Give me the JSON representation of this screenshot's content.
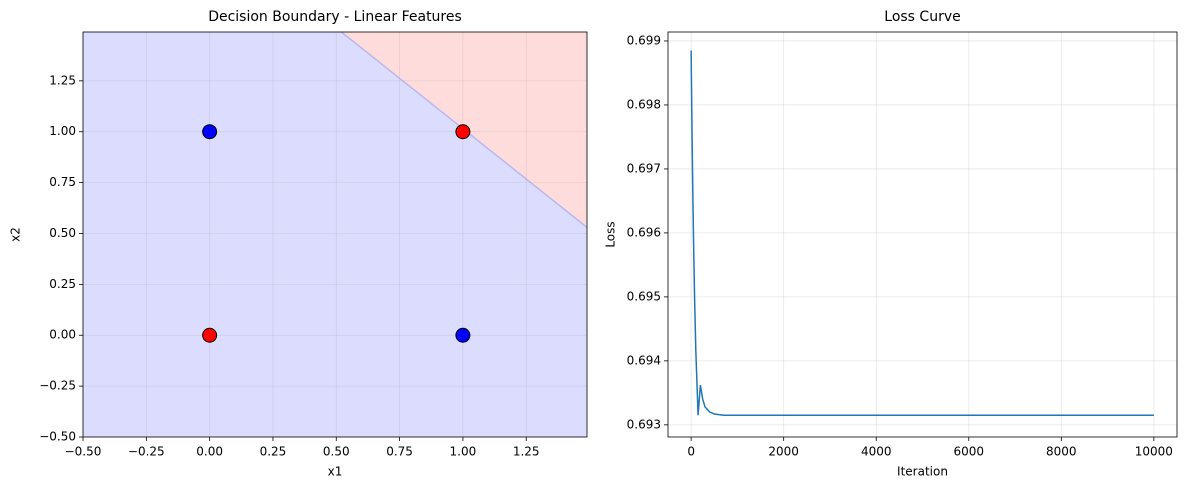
{
  "chart_data": [
    {
      "type": "scatter",
      "title": "Decision Boundary - Linear Features",
      "xlabel": "x1",
      "ylabel": "x2",
      "x": [
        0,
        0,
        1,
        1
      ],
      "y": [
        0,
        1,
        0,
        1
      ],
      "colors": [
        "#ff0000",
        "#0000ff",
        "#0000ff",
        "#ff0000"
      ],
      "boundary": {
        "x": [
          0.52,
          1.49
        ],
        "y": [
          1.49,
          0.53
        ],
        "color": "#b8b8ef"
      },
      "region_colors": [
        "#dcdcff",
        "#ffdcdc"
      ],
      "xlim": [
        -0.5,
        1.49
      ],
      "ylim": [
        -0.5,
        1.49
      ],
      "xticks": [
        {
          "value": -0.5,
          "label": "−0.50"
        },
        {
          "value": -0.25,
          "label": "−0.25"
        },
        {
          "value": 0,
          "label": "0.00"
        },
        {
          "value": 0.25,
          "label": "0.25"
        },
        {
          "value": 0.5,
          "label": "0.50"
        },
        {
          "value": 0.75,
          "label": "0.75"
        },
        {
          "value": 1,
          "label": "1.00"
        },
        {
          "value": 1.25,
          "label": "1.25"
        }
      ],
      "yticks": [
        {
          "value": -0.5,
          "label": "−0.50"
        },
        {
          "value": -0.25,
          "label": "−0.25"
        },
        {
          "value": 0,
          "label": "0.00"
        },
        {
          "value": 0.25,
          "label": "0.25"
        },
        {
          "value": 0.5,
          "label": "0.50"
        },
        {
          "value": 0.75,
          "label": "0.75"
        },
        {
          "value": 1,
          "label": "1.00"
        },
        {
          "value": 1.25,
          "label": "1.25"
        }
      ],
      "grid": true
    },
    {
      "type": "line",
      "title": "Loss Curve",
      "xlabel": "Iteration",
      "ylabel": "Loss",
      "color": "#1f77b4",
      "x": [
        0,
        10,
        20,
        30,
        40,
        50,
        75,
        100,
        150,
        200,
        250,
        300,
        400,
        500,
        700,
        1000,
        2000,
        4000,
        6000,
        8000,
        10000
      ],
      "values": [
        0.69885,
        0.69816,
        0.69753,
        0.69696,
        0.69644,
        0.69597,
        0.69497,
        0.69419,
        0.69315,
        0.69362,
        0.6934,
        0.69328,
        0.6932,
        0.69317,
        0.69315,
        0.69315,
        0.69315,
        0.69315,
        0.69315,
        0.69315,
        0.69315
      ],
      "xlim": [
        -500,
        10500
      ],
      "ylim": [
        0.69281,
        0.69914
      ],
      "xticks": [
        0,
        2000,
        4000,
        6000,
        8000,
        10000
      ],
      "yticks": [
        0.693,
        0.694,
        0.695,
        0.696,
        0.697,
        0.698,
        0.699
      ],
      "grid": true
    }
  ]
}
